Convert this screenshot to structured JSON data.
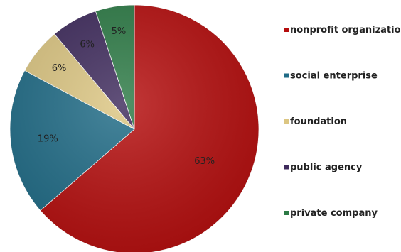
{
  "chart_data": {
    "type": "pie",
    "title": "",
    "legend_position": "right",
    "start_angle": "12 o'clock",
    "direction": "clockwise",
    "slices": [
      {
        "label": "nonprofit organization",
        "value": 63,
        "display": "63%",
        "color": "#b50d0d"
      },
      {
        "label": "social enterprise",
        "value": 19,
        "display": "19%",
        "color": "#1f6b86"
      },
      {
        "label": "foundation",
        "value": 6,
        "display": "6%",
        "color": "#dcc682"
      },
      {
        "label": "public agency",
        "value": 6,
        "display": "6%",
        "color": "#3e2a5c"
      },
      {
        "label": "private company",
        "value": 5,
        "display": "5%",
        "color": "#2c7a45"
      }
    ]
  }
}
